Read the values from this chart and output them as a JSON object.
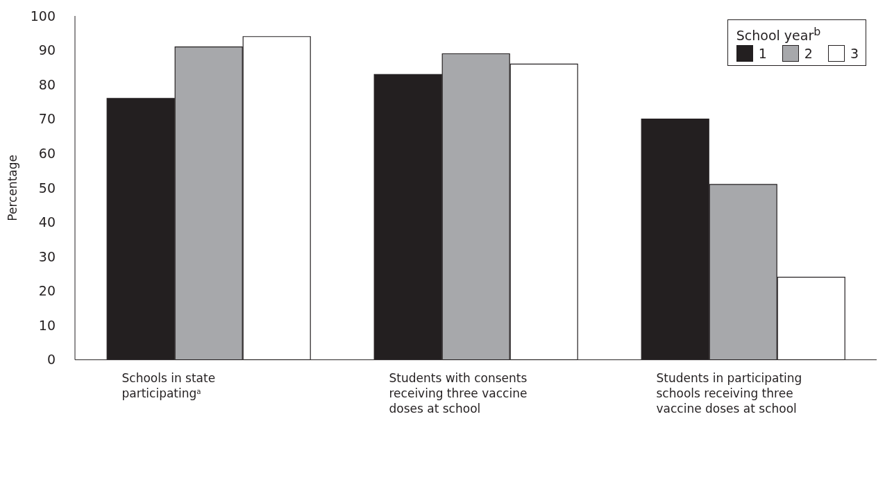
{
  "chart_data": {
    "type": "bar",
    "ylabel": "Percentage",
    "legend_title": "School year$^{b}$",
    "categories": [
      "Schools in state participating$^{a}$",
      "Students with consents receiving three vaccine doses at school",
      "Students in participating schools receiving three vaccine doses at school"
    ],
    "series": [
      {
        "name": "1",
        "color": "#231f20",
        "values": [
          76,
          83,
          70
        ]
      },
      {
        "name": "2",
        "color": "#a7a8ab",
        "values": [
          91,
          89,
          51
        ]
      },
      {
        "name": "3",
        "color": "#ffffff",
        "values": [
          94,
          86,
          24
        ]
      }
    ],
    "ylim": [
      0,
      100
    ],
    "yticks": [
      0,
      10,
      20,
      30,
      40,
      50,
      60,
      70,
      80,
      90,
      100
    ],
    "grid": false,
    "legend": "top right"
  }
}
